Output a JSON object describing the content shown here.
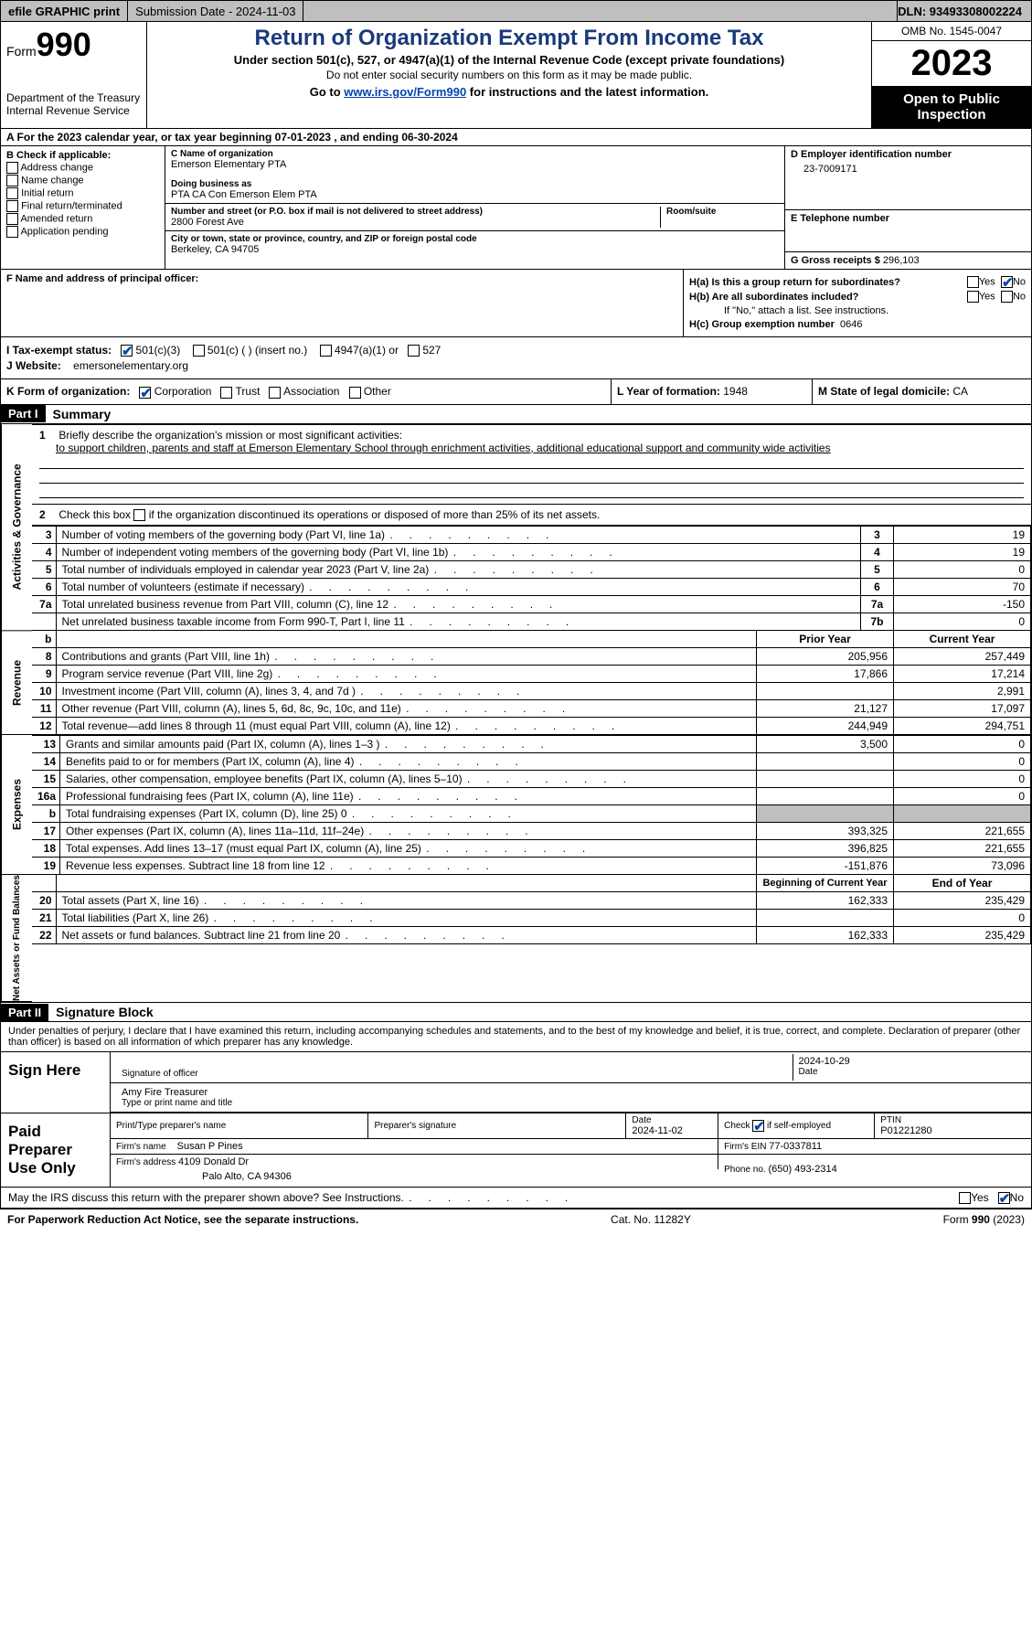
{
  "topbar": {
    "efile_label": "efile GRAPHIC print",
    "submission_label": "Submission Date - 2024-11-03",
    "dln_label": "DLN: 93493308002224"
  },
  "header": {
    "form_prefix": "Form",
    "form_number": "990",
    "dept": "Department of the Treasury",
    "irs": "Internal Revenue Service",
    "title": "Return of Organization Exempt From Income Tax",
    "sub": "Under section 501(c), 527, or 4947(a)(1) of the Internal Revenue Code (except private foundations)",
    "sub2": "Do not enter social security numbers on this form as it may be made public.",
    "goto_pre": "Go to ",
    "goto_link": "www.irs.gov/Form990",
    "goto_post": " for instructions and the latest information.",
    "omb": "OMB No. 1545-0047",
    "year": "2023",
    "openpub": "Open to Public Inspection"
  },
  "rowA": {
    "text": "A For the 2023 calendar year, or tax year beginning 07-01-2023   , and ending 06-30-2024"
  },
  "colB": {
    "header": "B Check if applicable:",
    "opts": [
      "Address change",
      "Name change",
      "Initial return",
      "Final return/terminated",
      "Amended return",
      "Application pending"
    ]
  },
  "colC": {
    "name_lbl": "C Name of organization",
    "name": "Emerson Elementary PTA",
    "dba_lbl": "Doing business as",
    "dba": "PTA CA Con Emerson Elem PTA",
    "street_lbl": "Number and street (or P.O. box if mail is not delivered to street address)",
    "room_lbl": "Room/suite",
    "street": "2800 Forest Ave",
    "city_lbl": "City or town, state or province, country, and ZIP or foreign postal code",
    "city": "Berkeley, CA  94705"
  },
  "colD": {
    "ein_lbl": "D Employer identification number",
    "ein": "23-7009171",
    "tel_lbl": "E Telephone number",
    "gross_lbl": "G Gross receipts $",
    "gross": "296,103"
  },
  "rowF": {
    "label": "F  Name and address of principal officer:"
  },
  "rowH": {
    "ha_lbl": "H(a)  Is this a group return for subordinates?",
    "hb_lbl": "H(b)  Are all subordinates included?",
    "hb_note": "If \"No,\" attach a list. See instructions.",
    "hc_lbl": "H(c)  Group exemption number  ",
    "hc_val": "0646",
    "yes": "Yes",
    "no": "No"
  },
  "rowI": {
    "label": "I   Tax-exempt status:",
    "o1": "501(c)(3)",
    "o2": "501(c) (  ) (insert no.)",
    "o3": "4947(a)(1) or",
    "o4": "527"
  },
  "rowJ": {
    "label": "J   Website: ",
    "value": "emersonelementary.org"
  },
  "rowK": {
    "label": "K Form of organization:",
    "opts": [
      "Corporation",
      "Trust",
      "Association",
      "Other"
    ],
    "L_lbl": "L Year of formation: ",
    "L_val": "1948",
    "M_lbl": "M State of legal domicile: ",
    "M_val": "CA"
  },
  "partI": {
    "bar": "Part I",
    "title": "Summary",
    "mission_num": "1",
    "mission_lbl": "Briefly describe the organization's mission or most significant activities:",
    "mission": "to support children, parents and staff at Emerson Elementary School through enrichment activities, additional educational support and community wide activities",
    "line2_num": "2",
    "line2": "Check this box      if the organization discontinued its operations or disposed of more than 25% of its net assets."
  },
  "gov_rows": [
    {
      "n": "3",
      "desc": "Number of voting members of the governing body (Part VI, line 1a)",
      "num": "3",
      "val": "19"
    },
    {
      "n": "4",
      "desc": "Number of independent voting members of the governing body (Part VI, line 1b)",
      "num": "4",
      "val": "19"
    },
    {
      "n": "5",
      "desc": "Total number of individuals employed in calendar year 2023 (Part V, line 2a)",
      "num": "5",
      "val": "0"
    },
    {
      "n": "6",
      "desc": "Total number of volunteers (estimate if necessary)",
      "num": "6",
      "val": "70"
    },
    {
      "n": "7a",
      "desc": "Total unrelated business revenue from Part VIII, column (C), line 12",
      "num": "7a",
      "val": "-150"
    },
    {
      "n": "",
      "desc": "Net unrelated business taxable income from Form 990-T, Part I, line 11",
      "num": "7b",
      "val": "0"
    }
  ],
  "rev_header": {
    "b": "b",
    "prior": "Prior Year",
    "current": "Current Year"
  },
  "rev_rows": [
    {
      "n": "8",
      "desc": "Contributions and grants (Part VIII, line 1h)",
      "p": "205,956",
      "c": "257,449"
    },
    {
      "n": "9",
      "desc": "Program service revenue (Part VIII, line 2g)",
      "p": "17,866",
      "c": "17,214"
    },
    {
      "n": "10",
      "desc": "Investment income (Part VIII, column (A), lines 3, 4, and 7d )",
      "p": "",
      "c": "2,991"
    },
    {
      "n": "11",
      "desc": "Other revenue (Part VIII, column (A), lines 5, 6d, 8c, 9c, 10c, and 11e)",
      "p": "21,127",
      "c": "17,097"
    },
    {
      "n": "12",
      "desc": "Total revenue—add lines 8 through 11 (must equal Part VIII, column (A), line 12)",
      "p": "244,949",
      "c": "294,751"
    }
  ],
  "exp_rows": [
    {
      "n": "13",
      "desc": "Grants and similar amounts paid (Part IX, column (A), lines 1–3 )",
      "p": "3,500",
      "c": "0"
    },
    {
      "n": "14",
      "desc": "Benefits paid to or for members (Part IX, column (A), line 4)",
      "p": "",
      "c": "0"
    },
    {
      "n": "15",
      "desc": "Salaries, other compensation, employee benefits (Part IX, column (A), lines 5–10)",
      "p": "",
      "c": "0"
    },
    {
      "n": "16a",
      "desc": "Professional fundraising fees (Part IX, column (A), line 11e)",
      "p": "",
      "c": "0"
    },
    {
      "n": "b",
      "desc": "Total fundraising expenses (Part IX, column (D), line 25) 0",
      "p": "GREY",
      "c": "GREY"
    },
    {
      "n": "17",
      "desc": "Other expenses (Part IX, column (A), lines 11a–11d, 11f–24e)",
      "p": "393,325",
      "c": "221,655"
    },
    {
      "n": "18",
      "desc": "Total expenses. Add lines 13–17 (must equal Part IX, column (A), line 25)",
      "p": "396,825",
      "c": "221,655"
    },
    {
      "n": "19",
      "desc": "Revenue less expenses. Subtract line 18 from line 12",
      "p": "-151,876",
      "c": "73,096"
    }
  ],
  "na_header": {
    "begin": "Beginning of Current Year",
    "end": "End of Year"
  },
  "na_rows": [
    {
      "n": "20",
      "desc": "Total assets (Part X, line 16)",
      "p": "162,333",
      "c": "235,429"
    },
    {
      "n": "21",
      "desc": "Total liabilities (Part X, line 26)",
      "p": "",
      "c": "0"
    },
    {
      "n": "22",
      "desc": "Net assets or fund balances. Subtract line 21 from line 20",
      "p": "162,333",
      "c": "235,429"
    }
  ],
  "sections": {
    "gov": "Activities & Governance",
    "rev": "Revenue",
    "exp": "Expenses",
    "na": "Net Assets or Fund Balances"
  },
  "partII": {
    "bar": "Part II",
    "title": "Signature Block",
    "decl": "Under penalties of perjury, I declare that I have examined this return, including accompanying schedules and statements, and to the best of my knowledge and belief, it is true, correct, and complete. Declaration of preparer (other than officer) is based on all information of which preparer has any knowledge."
  },
  "sign": {
    "here": "Sign Here",
    "sig_officer_lbl": "Signature of officer",
    "date_lbl": "Date",
    "date": "2024-10-29",
    "name_title": "Amy Fire Treasurer",
    "name_title_lbl": "Type or print name and title"
  },
  "paid": {
    "label": "Paid Preparer Use Only",
    "h1": "Print/Type preparer's name",
    "h2": "Preparer's signature",
    "h3": "Date",
    "h3v": "2024-11-02",
    "h4": "Check        if self-employed",
    "h5": "PTIN",
    "h5v": "P01221280",
    "firm_lbl": "Firm's name    ",
    "firm": "Susan P Pines",
    "ein_lbl": "Firm's EIN  ",
    "ein": "77-0337811",
    "addr_lbl": "Firm's address ",
    "addr1": "4109 Donald Dr",
    "addr2": "Palo Alto, CA  94306",
    "phone_lbl": "Phone no. ",
    "phone": "(650) 493-2314"
  },
  "discuss": {
    "text": "May the IRS discuss this return with the preparer shown above? See Instructions.",
    "yes": "Yes",
    "no": "No"
  },
  "footer": {
    "left": "For Paperwork Reduction Act Notice, see the separate instructions.",
    "mid": "Cat. No. 11282Y",
    "right": "Form 990 (2023)"
  }
}
